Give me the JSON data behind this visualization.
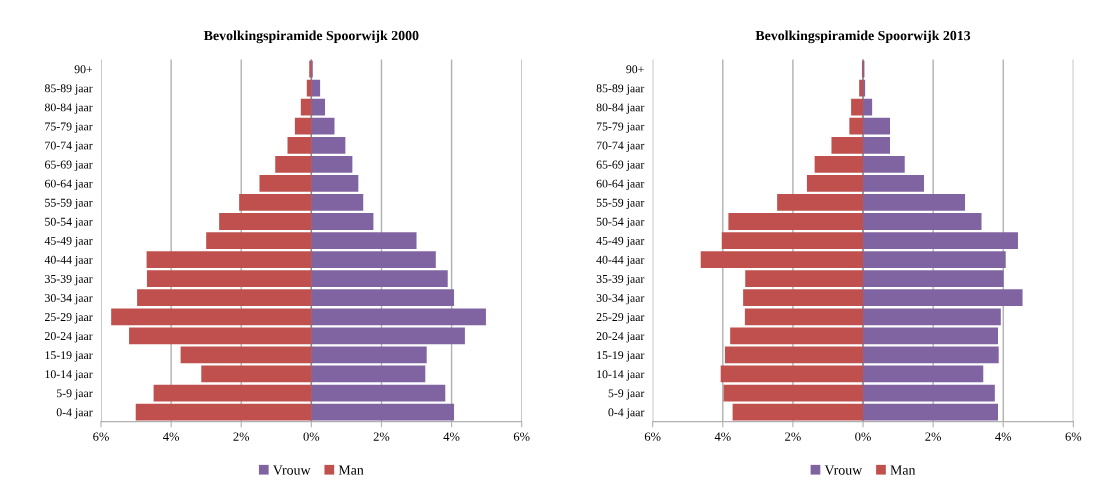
{
  "chart_data": [
    {
      "type": "bar",
      "orientation": "horizontal",
      "stacked": true,
      "title": "Bevolkingspiramide Spoorwijk 2000",
      "categories": [
        "90+",
        "85-89 jaar",
        "80-84 jaar",
        "75-79 jaar",
        "70-74 jaar",
        "65-69 jaar",
        "60-64 jaar",
        "55-59 jaar",
        "50-54 jaar",
        "45-49 jaar",
        "40-44 jaar",
        "35-39 jaar",
        "30-34 jaar",
        "25-29 jaar",
        "20-24 jaar",
        "15-19 jaar",
        "10-14 jaar",
        "5-9 jaar",
        "0-4 jaar"
      ],
      "series": [
        {
          "name": "Vrouw",
          "color": "#8064a2",
          "values": [
            0.04,
            0.25,
            0.39,
            0.66,
            0.97,
            1.17,
            1.34,
            1.48,
            1.77,
            3.0,
            3.55,
            3.89,
            4.07,
            4.98,
            4.38,
            3.29,
            3.25,
            3.82,
            4.07
          ]
        },
        {
          "name": "Man",
          "color": "#c0504d",
          "values": [
            -0.06,
            -0.13,
            -0.3,
            -0.47,
            -0.68,
            -1.03,
            -1.48,
            -2.06,
            -2.63,
            -3.0,
            -4.7,
            -4.69,
            -4.97,
            -5.71,
            -5.2,
            -3.73,
            -3.14,
            -4.5,
            -5.01
          ]
        }
      ],
      "xlim": [
        -6,
        6
      ],
      "xticks": [
        {
          "value": -6,
          "label": "6%"
        },
        {
          "value": -4,
          "label": "4%"
        },
        {
          "value": -2,
          "label": "2%"
        },
        {
          "value": 0,
          "label": "0%"
        },
        {
          "value": 2,
          "label": "2%"
        },
        {
          "value": 4,
          "label": "4%"
        },
        {
          "value": 6,
          "label": "6%"
        }
      ],
      "grid": "x",
      "legend": "bottom"
    },
    {
      "type": "bar",
      "orientation": "horizontal",
      "stacked": true,
      "title": "Bevolkingspiramide Spoorwijk 2013",
      "categories": [
        "90+",
        "85-89 jaar",
        "80-84 jaar",
        "75-79 jaar",
        "70-74 jaar",
        "65-69 jaar",
        "60-64 jaar",
        "55-59 jaar",
        "50-54 jaar",
        "45-49 jaar",
        "40-44 jaar",
        "35-39 jaar",
        "30-34 jaar",
        "25-29 jaar",
        "20-24 jaar",
        "15-19 jaar",
        "10-14 jaar",
        "5-9 jaar",
        "0-4 jaar"
      ],
      "series": [
        {
          "name": "Vrouw",
          "color": "#8064a2",
          "values": [
            0.04,
            0.06,
            0.26,
            0.77,
            0.77,
            1.19,
            1.74,
            2.91,
            3.38,
            4.42,
            4.07,
            4.01,
            4.55,
            3.93,
            3.85,
            3.87,
            3.43,
            3.76,
            3.85
          ]
        },
        {
          "name": "Man",
          "color": "#c0504d",
          "values": [
            -0.03,
            -0.11,
            -0.34,
            -0.39,
            -0.9,
            -1.38,
            -1.6,
            -2.45,
            -3.84,
            -4.03,
            -4.63,
            -3.36,
            -3.42,
            -3.37,
            -3.79,
            -3.94,
            -4.06,
            -3.98,
            -3.72
          ]
        }
      ],
      "xlim": [
        -6,
        6
      ],
      "xticks": [
        {
          "value": -6,
          "label": "6%"
        },
        {
          "value": -4,
          "label": "4%"
        },
        {
          "value": -2,
          "label": "2%"
        },
        {
          "value": 0,
          "label": "0%"
        },
        {
          "value": 2,
          "label": "2%"
        },
        {
          "value": 4,
          "label": "4%"
        },
        {
          "value": 6,
          "label": "6%"
        }
      ],
      "grid": "x",
      "legend": "bottom"
    }
  ]
}
